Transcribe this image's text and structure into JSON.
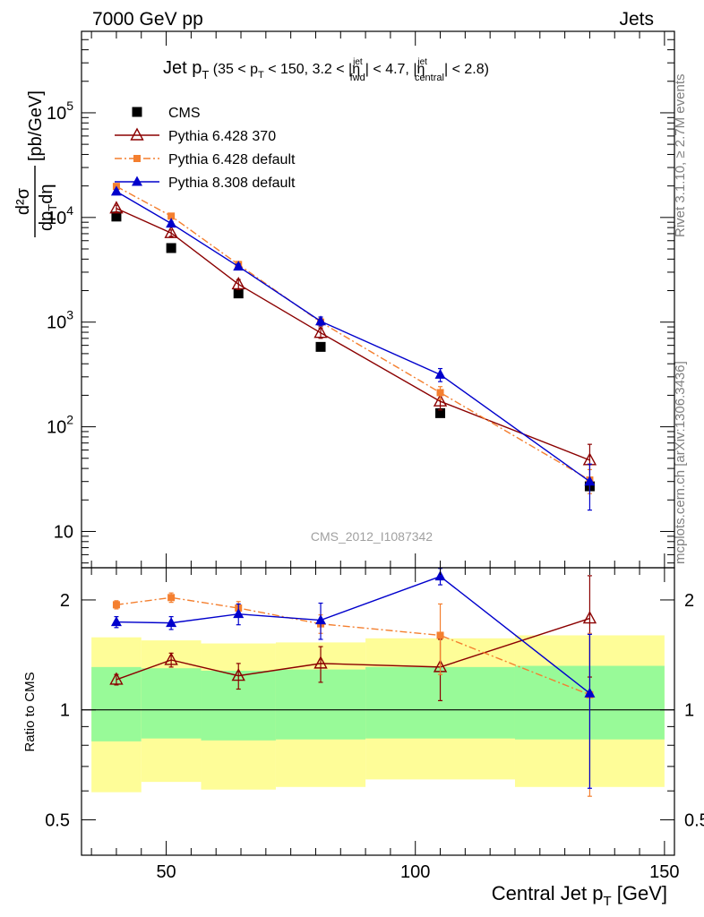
{
  "header": {
    "left": "7000 GeV pp",
    "right": "Jets"
  },
  "side": {
    "rivet": "Rivet 3.1.10, ≥ 2.7M events",
    "ref": "mcplots.cern.ch [arXiv:1306.3436]"
  },
  "watermark": "CMS_2012_I1087342",
  "chart_data": [
    {
      "type": "line",
      "title": "Jet pT (35 < pT < 150, 3.2 < |ηfwd jet| < 4.7, |ηcentral jet| < 2.8)",
      "title_parts": {
        "main": "Jet p",
        "main_sub": "T",
        "cond1": " (35 < p",
        "cond1_sub": "T",
        "cond2": " < 150, 3.2 < |η",
        "fwd_sup": "jet",
        "fwd_sub": "fwd",
        "cond3": "| < 4.7, |η",
        "cen_sup": "jet",
        "cen_sub": "central",
        "cond4": "| < 2.8)"
      },
      "ylabel": "d²σ/dpT dη [pb/GeV]",
      "ylabel_parts": {
        "num": "d²σ",
        "den": "dp",
        "den_sub": "T",
        "den_rest": "dη",
        "unit": "[pb/GeV]"
      },
      "yscale": "log",
      "xlim": [
        33,
        152
      ],
      "ylim": [
        4.5,
        600000
      ],
      "yticks": [
        10,
        100,
        1000,
        10000,
        100000
      ],
      "ytick_labels": [
        {
          "base": "10",
          "exp": ""
        },
        {
          "base": "10",
          "exp": "2"
        },
        {
          "base": "10",
          "exp": "3"
        },
        {
          "base": "10",
          "exp": "4"
        },
        {
          "base": "10",
          "exp": "5"
        }
      ],
      "legend_position": "top-left",
      "x": [
        40,
        51,
        64.5,
        81,
        105,
        135
      ],
      "series": [
        {
          "name": "CMS",
          "style": "data",
          "color": "#000000",
          "marker": "square",
          "values": [
            10200,
            5100,
            1880,
            580,
            135,
            27
          ]
        },
        {
          "name": "Pythia 6.428 370",
          "style": "solid",
          "color": "#8b0000",
          "marker": "triangle-open",
          "values": [
            12200,
            7100,
            2300,
            790,
            175,
            48
          ],
          "err": [
            900,
            500,
            250,
            90,
            30,
            20
          ]
        },
        {
          "name": "Pythia 6.428 default",
          "style": "dashdot",
          "color": "#f47f2f",
          "marker": "square-small",
          "values": [
            19800,
            10300,
            3550,
            1000,
            212,
            31
          ],
          "err": [
            900,
            600,
            250,
            90,
            30,
            8
          ]
        },
        {
          "name": "Pythia 8.308 default",
          "style": "solid",
          "color": "#0000cc",
          "marker": "triangle",
          "values": [
            17700,
            8750,
            3400,
            1020,
            315,
            30
          ],
          "err": [
            800,
            400,
            200,
            100,
            45,
            14
          ]
        }
      ]
    },
    {
      "type": "line",
      "title": "",
      "xlabel": "Central Jet pT [GeV]",
      "xlabel_parts": {
        "main": "Central Jet p",
        "sub": "T",
        "rest": " [GeV]"
      },
      "ylabel": "Ratio to CMS",
      "yscale": "log",
      "xlim": [
        33,
        152
      ],
      "ylim": [
        0.4,
        2.45
      ],
      "xticks": [
        50,
        100,
        150
      ],
      "yticks": [
        0.5,
        1,
        2
      ],
      "bands": {
        "bin_edges": [
          35,
          45,
          57,
          72,
          90,
          120,
          150
        ],
        "inner_low": [
          0.82,
          0.835,
          0.825,
          0.83,
          0.835,
          0.83
        ],
        "inner_high": [
          1.31,
          1.3,
          1.28,
          1.29,
          1.31,
          1.32
        ],
        "outer_low": [
          0.595,
          0.635,
          0.605,
          0.615,
          0.645,
          0.615
        ],
        "outer_high": [
          1.58,
          1.55,
          1.52,
          1.53,
          1.57,
          1.6
        ],
        "inner_color": "#98fa98",
        "outer_color": "#fefd98"
      },
      "x": [
        40,
        51,
        64.5,
        81,
        105,
        135
      ],
      "series": [
        {
          "name": "Pythia 6.428 370",
          "color": "#8b0000",
          "marker": "triangle-open",
          "values": [
            1.21,
            1.37,
            1.24,
            1.34,
            1.31,
            1.78
          ],
          "err": [
            0.04,
            0.06,
            0.1,
            0.15,
            0.25,
            0.55
          ]
        },
        {
          "name": "Pythia 6.428 default",
          "color": "#f47f2f",
          "marker": "square-small",
          "values": [
            1.94,
            2.03,
            1.9,
            1.72,
            1.6,
            1.1
          ],
          "err": [
            0.05,
            0.06,
            0.08,
            0.1,
            0.35,
            0.52
          ]
        },
        {
          "name": "Pythia 8.308 default",
          "color": "#0000cc",
          "marker": "triangle",
          "values": [
            1.74,
            1.73,
            1.83,
            1.76,
            2.32,
            1.11
          ],
          "err": [
            0.06,
            0.07,
            0.12,
            0.2,
            0.12,
            0.5
          ]
        }
      ]
    }
  ]
}
